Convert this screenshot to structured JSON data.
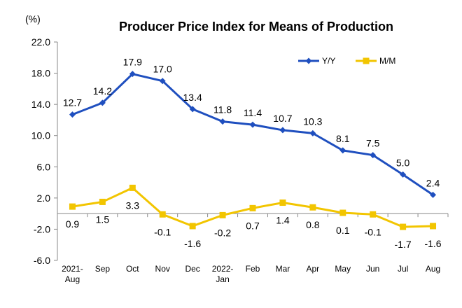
{
  "chart_data": {
    "type": "line",
    "title": "Producer Price Index for Means of Production",
    "unit_label": "(%)",
    "ylabel": "",
    "xlabel": "",
    "ylim": [
      -6.0,
      22.0
    ],
    "yticks": [
      "22.0",
      "18.0",
      "14.0",
      "10.0",
      "6.0",
      "2.0",
      "-2.0",
      "-6.0"
    ],
    "ytick_values": [
      22,
      18,
      14,
      10,
      6,
      2,
      -2,
      -6
    ],
    "categories": [
      [
        "2021-",
        "Aug"
      ],
      [
        "Sep"
      ],
      [
        "Oct"
      ],
      [
        "Nov"
      ],
      [
        "Dec"
      ],
      [
        "2022-",
        "Jan"
      ],
      [
        "Feb"
      ],
      [
        "Mar"
      ],
      [
        "Apr"
      ],
      [
        "May"
      ],
      [
        "Jun"
      ],
      [
        "Jul"
      ],
      [
        "Aug"
      ]
    ],
    "series": [
      {
        "name": "Y/Y",
        "color": "#1f4fbf",
        "marker": "diamond",
        "values": [
          12.7,
          14.2,
          17.9,
          17.0,
          13.4,
          11.8,
          11.4,
          10.7,
          10.3,
          8.1,
          7.5,
          5.0,
          2.4
        ],
        "labels": [
          "12.7",
          "14.2",
          "17.9",
          "17.0",
          "13.4",
          "11.8",
          "11.4",
          "10.7",
          "10.3",
          "8.1",
          "7.5",
          "5.0",
          "2.4"
        ]
      },
      {
        "name": "M/M",
        "color": "#f2c500",
        "marker": "square",
        "values": [
          0.9,
          1.5,
          3.3,
          -0.1,
          -1.6,
          -0.2,
          0.7,
          1.4,
          0.8,
          0.1,
          -0.1,
          -1.7,
          -1.6
        ],
        "labels": [
          "0.9",
          "1.5",
          "3.3",
          "-0.1",
          "-1.6",
          "-0.2",
          "0.7",
          "1.4",
          "0.8",
          "0.1",
          "-0.1",
          "-1.7",
          "-1.6"
        ]
      }
    ],
    "grid": false,
    "legend_position": "top-right"
  }
}
